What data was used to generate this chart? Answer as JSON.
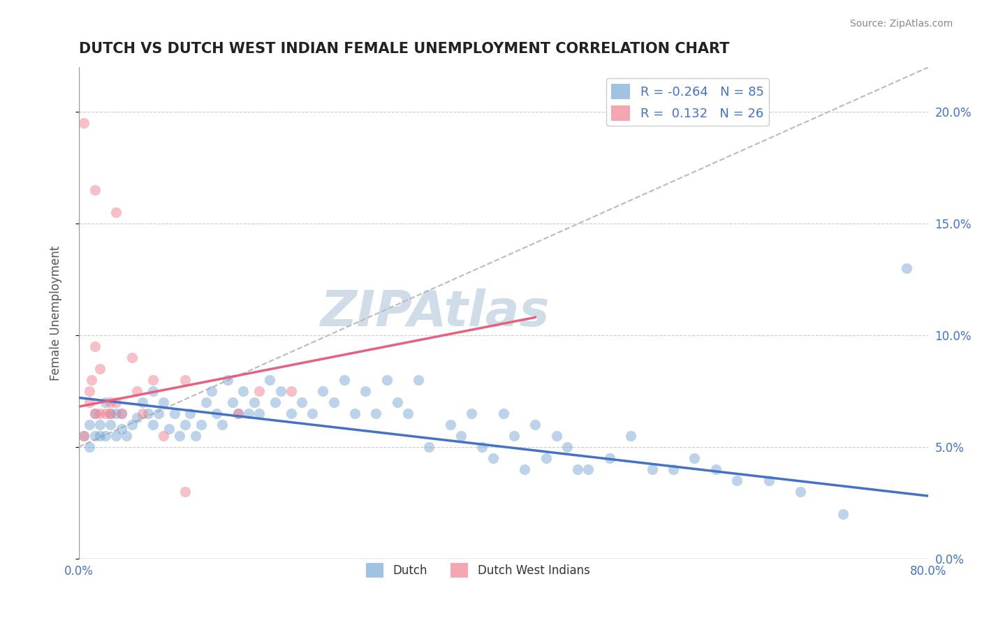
{
  "title": "DUTCH VS DUTCH WEST INDIAN FEMALE UNEMPLOYMENT CORRELATION CHART",
  "source": "Source: ZipAtlas.com",
  "xlabel": "",
  "ylabel": "Female Unemployment",
  "watermark": "ZIPAtlas",
  "legend_entries": [
    {
      "label": "R = -0.264   N = 85",
      "color": "#a8c4e0"
    },
    {
      "label": "R =  0.132   N = 26",
      "color": "#f4a8b8"
    }
  ],
  "legend_labels": [
    "Dutch",
    "Dutch West Indians"
  ],
  "legend_colors": [
    "#a8c4e0",
    "#f4a8b8"
  ],
  "xmin": 0.0,
  "xmax": 0.8,
  "ymin": 0.0,
  "ymax": 0.22,
  "yticks": [
    0.0,
    0.05,
    0.1,
    0.15,
    0.2
  ],
  "ytick_labels": [
    "0.0%",
    "5.0%",
    "10.0%",
    "15.0%",
    "20.0%"
  ],
  "xticks": [
    0.0,
    0.1,
    0.2,
    0.3,
    0.4,
    0.5,
    0.6,
    0.7,
    0.8
  ],
  "xtick_labels": [
    "0.0%",
    "",
    "",
    "",
    "",
    "",
    "",
    "",
    "80.0%"
  ],
  "blue_scatter": [
    [
      0.005,
      0.055
    ],
    [
      0.01,
      0.06
    ],
    [
      0.01,
      0.05
    ],
    [
      0.015,
      0.065
    ],
    [
      0.015,
      0.055
    ],
    [
      0.02,
      0.06
    ],
    [
      0.02,
      0.055
    ],
    [
      0.025,
      0.07
    ],
    [
      0.025,
      0.055
    ],
    [
      0.03,
      0.065
    ],
    [
      0.03,
      0.06
    ],
    [
      0.035,
      0.055
    ],
    [
      0.035,
      0.065
    ],
    [
      0.04,
      0.058
    ],
    [
      0.04,
      0.065
    ],
    [
      0.045,
      0.055
    ],
    [
      0.05,
      0.06
    ],
    [
      0.055,
      0.063
    ],
    [
      0.06,
      0.07
    ],
    [
      0.065,
      0.065
    ],
    [
      0.07,
      0.075
    ],
    [
      0.07,
      0.06
    ],
    [
      0.075,
      0.065
    ],
    [
      0.08,
      0.07
    ],
    [
      0.085,
      0.058
    ],
    [
      0.09,
      0.065
    ],
    [
      0.095,
      0.055
    ],
    [
      0.1,
      0.06
    ],
    [
      0.105,
      0.065
    ],
    [
      0.11,
      0.055
    ],
    [
      0.115,
      0.06
    ],
    [
      0.12,
      0.07
    ],
    [
      0.125,
      0.075
    ],
    [
      0.13,
      0.065
    ],
    [
      0.135,
      0.06
    ],
    [
      0.14,
      0.08
    ],
    [
      0.145,
      0.07
    ],
    [
      0.15,
      0.065
    ],
    [
      0.155,
      0.075
    ],
    [
      0.16,
      0.065
    ],
    [
      0.165,
      0.07
    ],
    [
      0.17,
      0.065
    ],
    [
      0.18,
      0.08
    ],
    [
      0.185,
      0.07
    ],
    [
      0.19,
      0.075
    ],
    [
      0.2,
      0.065
    ],
    [
      0.21,
      0.07
    ],
    [
      0.22,
      0.065
    ],
    [
      0.23,
      0.075
    ],
    [
      0.24,
      0.07
    ],
    [
      0.25,
      0.08
    ],
    [
      0.26,
      0.065
    ],
    [
      0.27,
      0.075
    ],
    [
      0.28,
      0.065
    ],
    [
      0.29,
      0.08
    ],
    [
      0.3,
      0.07
    ],
    [
      0.31,
      0.065
    ],
    [
      0.32,
      0.08
    ],
    [
      0.33,
      0.05
    ],
    [
      0.35,
      0.06
    ],
    [
      0.36,
      0.055
    ],
    [
      0.37,
      0.065
    ],
    [
      0.38,
      0.05
    ],
    [
      0.39,
      0.045
    ],
    [
      0.4,
      0.065
    ],
    [
      0.41,
      0.055
    ],
    [
      0.42,
      0.04
    ],
    [
      0.43,
      0.06
    ],
    [
      0.44,
      0.045
    ],
    [
      0.45,
      0.055
    ],
    [
      0.46,
      0.05
    ],
    [
      0.47,
      0.04
    ],
    [
      0.48,
      0.04
    ],
    [
      0.5,
      0.045
    ],
    [
      0.52,
      0.055
    ],
    [
      0.54,
      0.04
    ],
    [
      0.56,
      0.04
    ],
    [
      0.58,
      0.045
    ],
    [
      0.6,
      0.04
    ],
    [
      0.62,
      0.035
    ],
    [
      0.65,
      0.035
    ],
    [
      0.68,
      0.03
    ],
    [
      0.72,
      0.02
    ],
    [
      0.78,
      0.13
    ]
  ],
  "pink_scatter": [
    [
      0.005,
      0.055
    ],
    [
      0.01,
      0.07
    ],
    [
      0.01,
      0.075
    ],
    [
      0.012,
      0.08
    ],
    [
      0.015,
      0.095
    ],
    [
      0.015,
      0.065
    ],
    [
      0.02,
      0.085
    ],
    [
      0.02,
      0.065
    ],
    [
      0.025,
      0.065
    ],
    [
      0.03,
      0.07
    ],
    [
      0.03,
      0.065
    ],
    [
      0.035,
      0.07
    ],
    [
      0.04,
      0.065
    ],
    [
      0.05,
      0.09
    ],
    [
      0.055,
      0.075
    ],
    [
      0.06,
      0.065
    ],
    [
      0.07,
      0.08
    ],
    [
      0.08,
      0.055
    ],
    [
      0.1,
      0.08
    ],
    [
      0.15,
      0.065
    ],
    [
      0.17,
      0.075
    ],
    [
      0.2,
      0.075
    ],
    [
      0.005,
      0.195
    ],
    [
      0.015,
      0.165
    ],
    [
      0.035,
      0.155
    ],
    [
      0.1,
      0.03
    ]
  ],
  "blue_line": [
    [
      0.0,
      0.072
    ],
    [
      0.8,
      0.028
    ]
  ],
  "pink_line": [
    [
      0.0,
      0.068
    ],
    [
      0.43,
      0.108
    ]
  ],
  "dashed_line": [
    [
      0.0,
      0.05
    ],
    [
      0.8,
      0.22
    ]
  ],
  "title_color": "#222222",
  "title_fontsize": 15,
  "axis_label_color": "#555555",
  "tick_label_color": "#4472c4",
  "source_color": "#888888",
  "grid_color": "#cccccc",
  "background_color": "#ffffff",
  "watermark_color": "#d0dce8",
  "blue_color": "#7aa8d4",
  "pink_color": "#f08090",
  "blue_line_color": "#4472c4",
  "pink_line_color": "#e86080",
  "dashed_line_color": "#bbbbbb"
}
